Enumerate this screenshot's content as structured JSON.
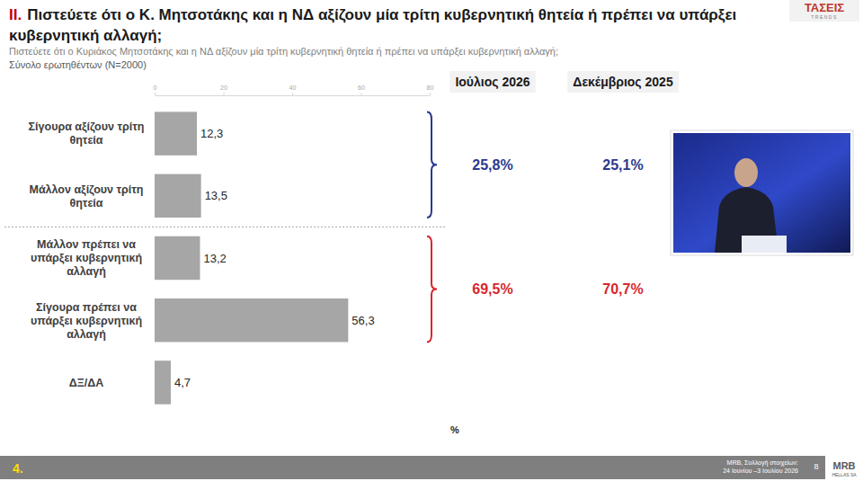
{
  "chart_data": {
    "type": "bar",
    "orientation": "horizontal",
    "section": "II.",
    "title": "Πιστεύετε ότι ο Κ. Μητσοτάκης και η ΝΔ αξίζουν μία τρίτη κυβερνητική θητεία ή πρέπει να υπάρξει κυβερνητική αλλαγή;",
    "subtitle": "Πιστεύετε ότι ο Κυριάκος Μητσοτάκης και η ΝΔ αξίζουν μία τρίτη κυβερνητική θητεία ή πρέπει να υπάρξει κυβερνητική αλλαγή;",
    "base_note": "Σύνολο ερωτηθέντων (N=2000)",
    "categories": [
      "Σίγουρα αξίζουν τρίτη θητεία",
      "Μάλλον αξίζουν τρίτη θητεία",
      "Μάλλον πρέπει να υπάρξει κυβερνητική αλλαγή",
      "Σίγουρα πρέπει να υπάρξει κυβερνητική αλλαγή",
      "ΔΞ/ΔΑ"
    ],
    "values": [
      12.3,
      13.5,
      13.2,
      56.3,
      4.7
    ],
    "value_labels": [
      "12,3",
      "13,5",
      "13,2",
      "56,3",
      "4,7"
    ],
    "color": "#a6a6a6",
    "data_labels": true,
    "xlim": [
      0,
      80
    ],
    "xticks": [
      0,
      20,
      40,
      60,
      80
    ],
    "x_label": "%",
    "grid": false,
    "periods": [
      "Ιούλιος 2026",
      "Δεκέμβριος 2025"
    ],
    "groups": [
      {
        "members": [
          "Σίγουρα αξίζουν τρίτη θητεία",
          "Μάλλον αξίζουν τρίτη θητεία"
        ],
        "color": "#2b3990",
        "values": [
          25.8,
          25.1
        ],
        "value_labels": [
          "25,8%",
          "25,1%"
        ]
      },
      {
        "members": [
          "Μάλλον πρέπει να υπάρξει κυβερνητική αλλαγή",
          "Σίγουρα πρέπει να υπάρξει κυβερνητική αλλαγή"
        ],
        "color": "#d7262d",
        "values": [
          69.5,
          70.7
        ],
        "value_labels": [
          "69,5%",
          "70,7%"
        ]
      }
    ]
  },
  "footer": {
    "section_number": "4.",
    "source": [
      "MRB, Συλλογή στοιχείων:",
      "24 Ιουνίου –3 Ιουλίου 2026"
    ],
    "page": "8"
  },
  "logos": {
    "top_right": [
      "ΤΑΣΕΙΣ",
      "TRENDS"
    ],
    "bottom_right": [
      "MRB",
      "HELLAS SA"
    ]
  }
}
